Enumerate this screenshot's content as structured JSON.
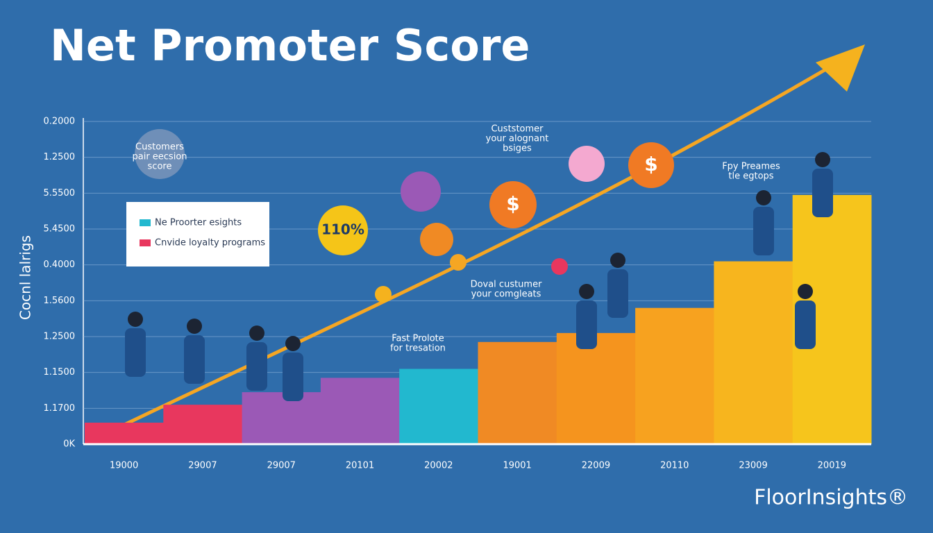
{
  "chart_data": {
    "type": "bar",
    "title": "Net Promoter Score",
    "ylabel": "Cocnl lalrigs",
    "categories": [
      "19000",
      "29007",
      "29007",
      "20101",
      "20002",
      "19001",
      "22009",
      "20110",
      "23009",
      "20019"
    ],
    "values": [
      0.6,
      1.1,
      1.45,
      1.85,
      2.1,
      2.85,
      3.1,
      3.8,
      5.1,
      6.95
    ],
    "colors": [
      "#e8375e",
      "#e8375e",
      "#9b59b6",
      "#9b59b6",
      "#22b8cf",
      "#f08a24",
      "#f5941e",
      "#f7a21f",
      "#f7b51e",
      "#f6c51c"
    ],
    "ylim": [
      0,
      9
    ],
    "yticks": [
      {
        "value": 0,
        "label": "0K"
      },
      {
        "value": 1,
        "label": "1.1700"
      },
      {
        "value": 2,
        "label": "1.1500"
      },
      {
        "value": 3,
        "label": "1.2500"
      },
      {
        "value": 4,
        "label": "1.5600"
      },
      {
        "value": 5,
        "label": "0.4000"
      },
      {
        "value": 6,
        "label": "5.4500"
      },
      {
        "value": 7,
        "label": "5.5500"
      },
      {
        "value": 8,
        "label": "1.2500"
      },
      {
        "value": 9,
        "label": "0.2000"
      }
    ],
    "grid": true,
    "legend": [
      {
        "name": "Ne Proorter esights",
        "color": "#22b8cf"
      },
      {
        "name": "Cnvide loyalty programs",
        "color": "#e8375e"
      }
    ],
    "annotations": [
      [
        "Customers",
        "pair eecsion",
        "score"
      ],
      [
        "Custstomer",
        "your alognant",
        "bsiges"
      ],
      [
        "Fpy Preames",
        "tle egtops"
      ],
      [
        "Doval custumer",
        "your comgleats"
      ],
      [
        "Fast Prolote",
        "for tresation"
      ]
    ],
    "badge": "110%",
    "icon_symbol": "$",
    "brand": "FloorInsights®"
  }
}
